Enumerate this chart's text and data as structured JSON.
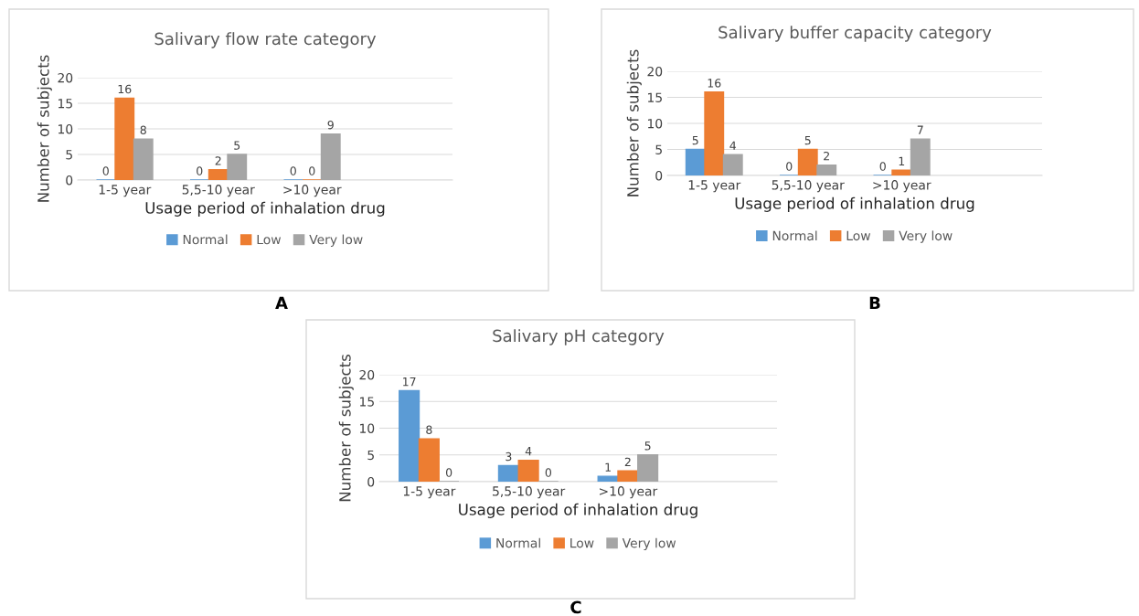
{
  "chart_data": [
    {
      "type": "bar",
      "title": "Salivary flow rate category",
      "xlabel": "Usage period of inhalation drug",
      "ylabel": "Number of subjects",
      "categories": [
        "1-5 year",
        "5,5-10 year",
        ">10 year",
        null
      ],
      "series": [
        {
          "name": "Normal",
          "color": "#5b9bd5",
          "values": [
            0,
            0,
            0,
            null
          ]
        },
        {
          "name": "Low",
          "color": "#ed7d31",
          "values": [
            16,
            2,
            0,
            null
          ]
        },
        {
          "name": "Very low",
          "color": "#a5a5a5",
          "values": [
            8,
            5,
            9,
            null
          ]
        }
      ],
      "ylim": [
        0,
        20
      ],
      "yticks": [
        0,
        5,
        10,
        15,
        20
      ],
      "grid": "y",
      "legend": "bottom",
      "data_labels": true,
      "annotations": [
        "A"
      ]
    },
    {
      "type": "bar",
      "title": "Salivary buffer capacity category",
      "xlabel": "Usage period of inhalation drug",
      "ylabel": "Number of subjects",
      "categories": [
        "1-5 year",
        "5,5-10 year",
        ">10 year",
        null
      ],
      "series": [
        {
          "name": "Normal",
          "color": "#5b9bd5",
          "values": [
            5,
            0,
            0,
            null
          ]
        },
        {
          "name": "Low",
          "color": "#ed7d31",
          "values": [
            16,
            5,
            1,
            null
          ]
        },
        {
          "name": "Very low",
          "color": "#a5a5a5",
          "values": [
            4,
            2,
            7,
            null
          ]
        }
      ],
      "ylim": [
        0,
        20
      ],
      "yticks": [
        0,
        5,
        10,
        15,
        20
      ],
      "grid": "y",
      "legend": "bottom",
      "data_labels": true,
      "annotations": [
        "B"
      ]
    },
    {
      "type": "bar",
      "title": "Salivary pH category",
      "xlabel": "Usage period of inhalation drug",
      "ylabel": "Number of subjects",
      "categories": [
        "1-5 year",
        "5,5-10 year",
        ">10 year",
        null
      ],
      "series": [
        {
          "name": "Normal",
          "color": "#5b9bd5",
          "values": [
            17,
            3,
            1,
            null
          ]
        },
        {
          "name": "Low",
          "color": "#ed7d31",
          "values": [
            8,
            4,
            2,
            null
          ]
        },
        {
          "name": "Very low",
          "color": "#a5a5a5",
          "values": [
            0,
            0,
            5,
            null
          ]
        }
      ],
      "ylim": [
        0,
        20
      ],
      "yticks": [
        0,
        5,
        10,
        15,
        20
      ],
      "grid": "y",
      "legend": "bottom",
      "data_labels": true,
      "annotations": [
        "C"
      ]
    }
  ]
}
